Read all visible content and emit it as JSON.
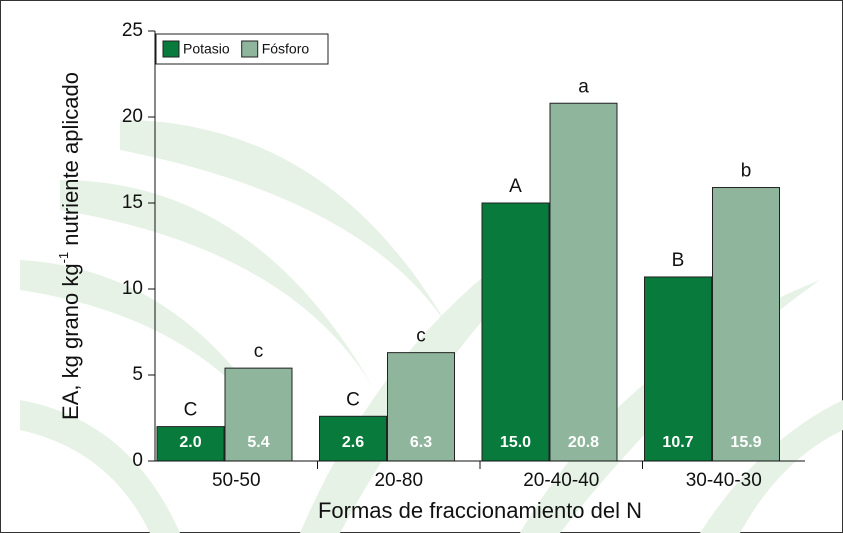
{
  "chart_data": {
    "type": "bar",
    "y_label": {
      "text": "EA, kg grano kg",
      "superscript": "-1",
      "rest": " nutriente aplicado"
    },
    "x_label": "Formas de fraccionamiento del N",
    "categories": [
      "50-50",
      "20-80",
      "20-40-40",
      "30-40-30"
    ],
    "series": [
      {
        "name": "Potasio",
        "color": "#087a3b",
        "values": [
          2.0,
          2.6,
          15.0,
          10.7
        ],
        "value_labels": [
          "2.0",
          "2.6",
          "15.0",
          "10.7"
        ],
        "letters": [
          "C",
          "C",
          "A",
          "B"
        ]
      },
      {
        "name": "Fósforo",
        "color": "#8fb59c",
        "values": [
          5.4,
          6.3,
          20.8,
          15.9
        ],
        "value_labels": [
          "5.4",
          "6.3",
          "20.8",
          "15.9"
        ],
        "letters": [
          "c",
          "c",
          "a",
          "b"
        ]
      }
    ],
    "ylim": [
      0,
      25
    ],
    "yticks": [
      0,
      5,
      10,
      15,
      20,
      25
    ],
    "legend": "top-left"
  }
}
